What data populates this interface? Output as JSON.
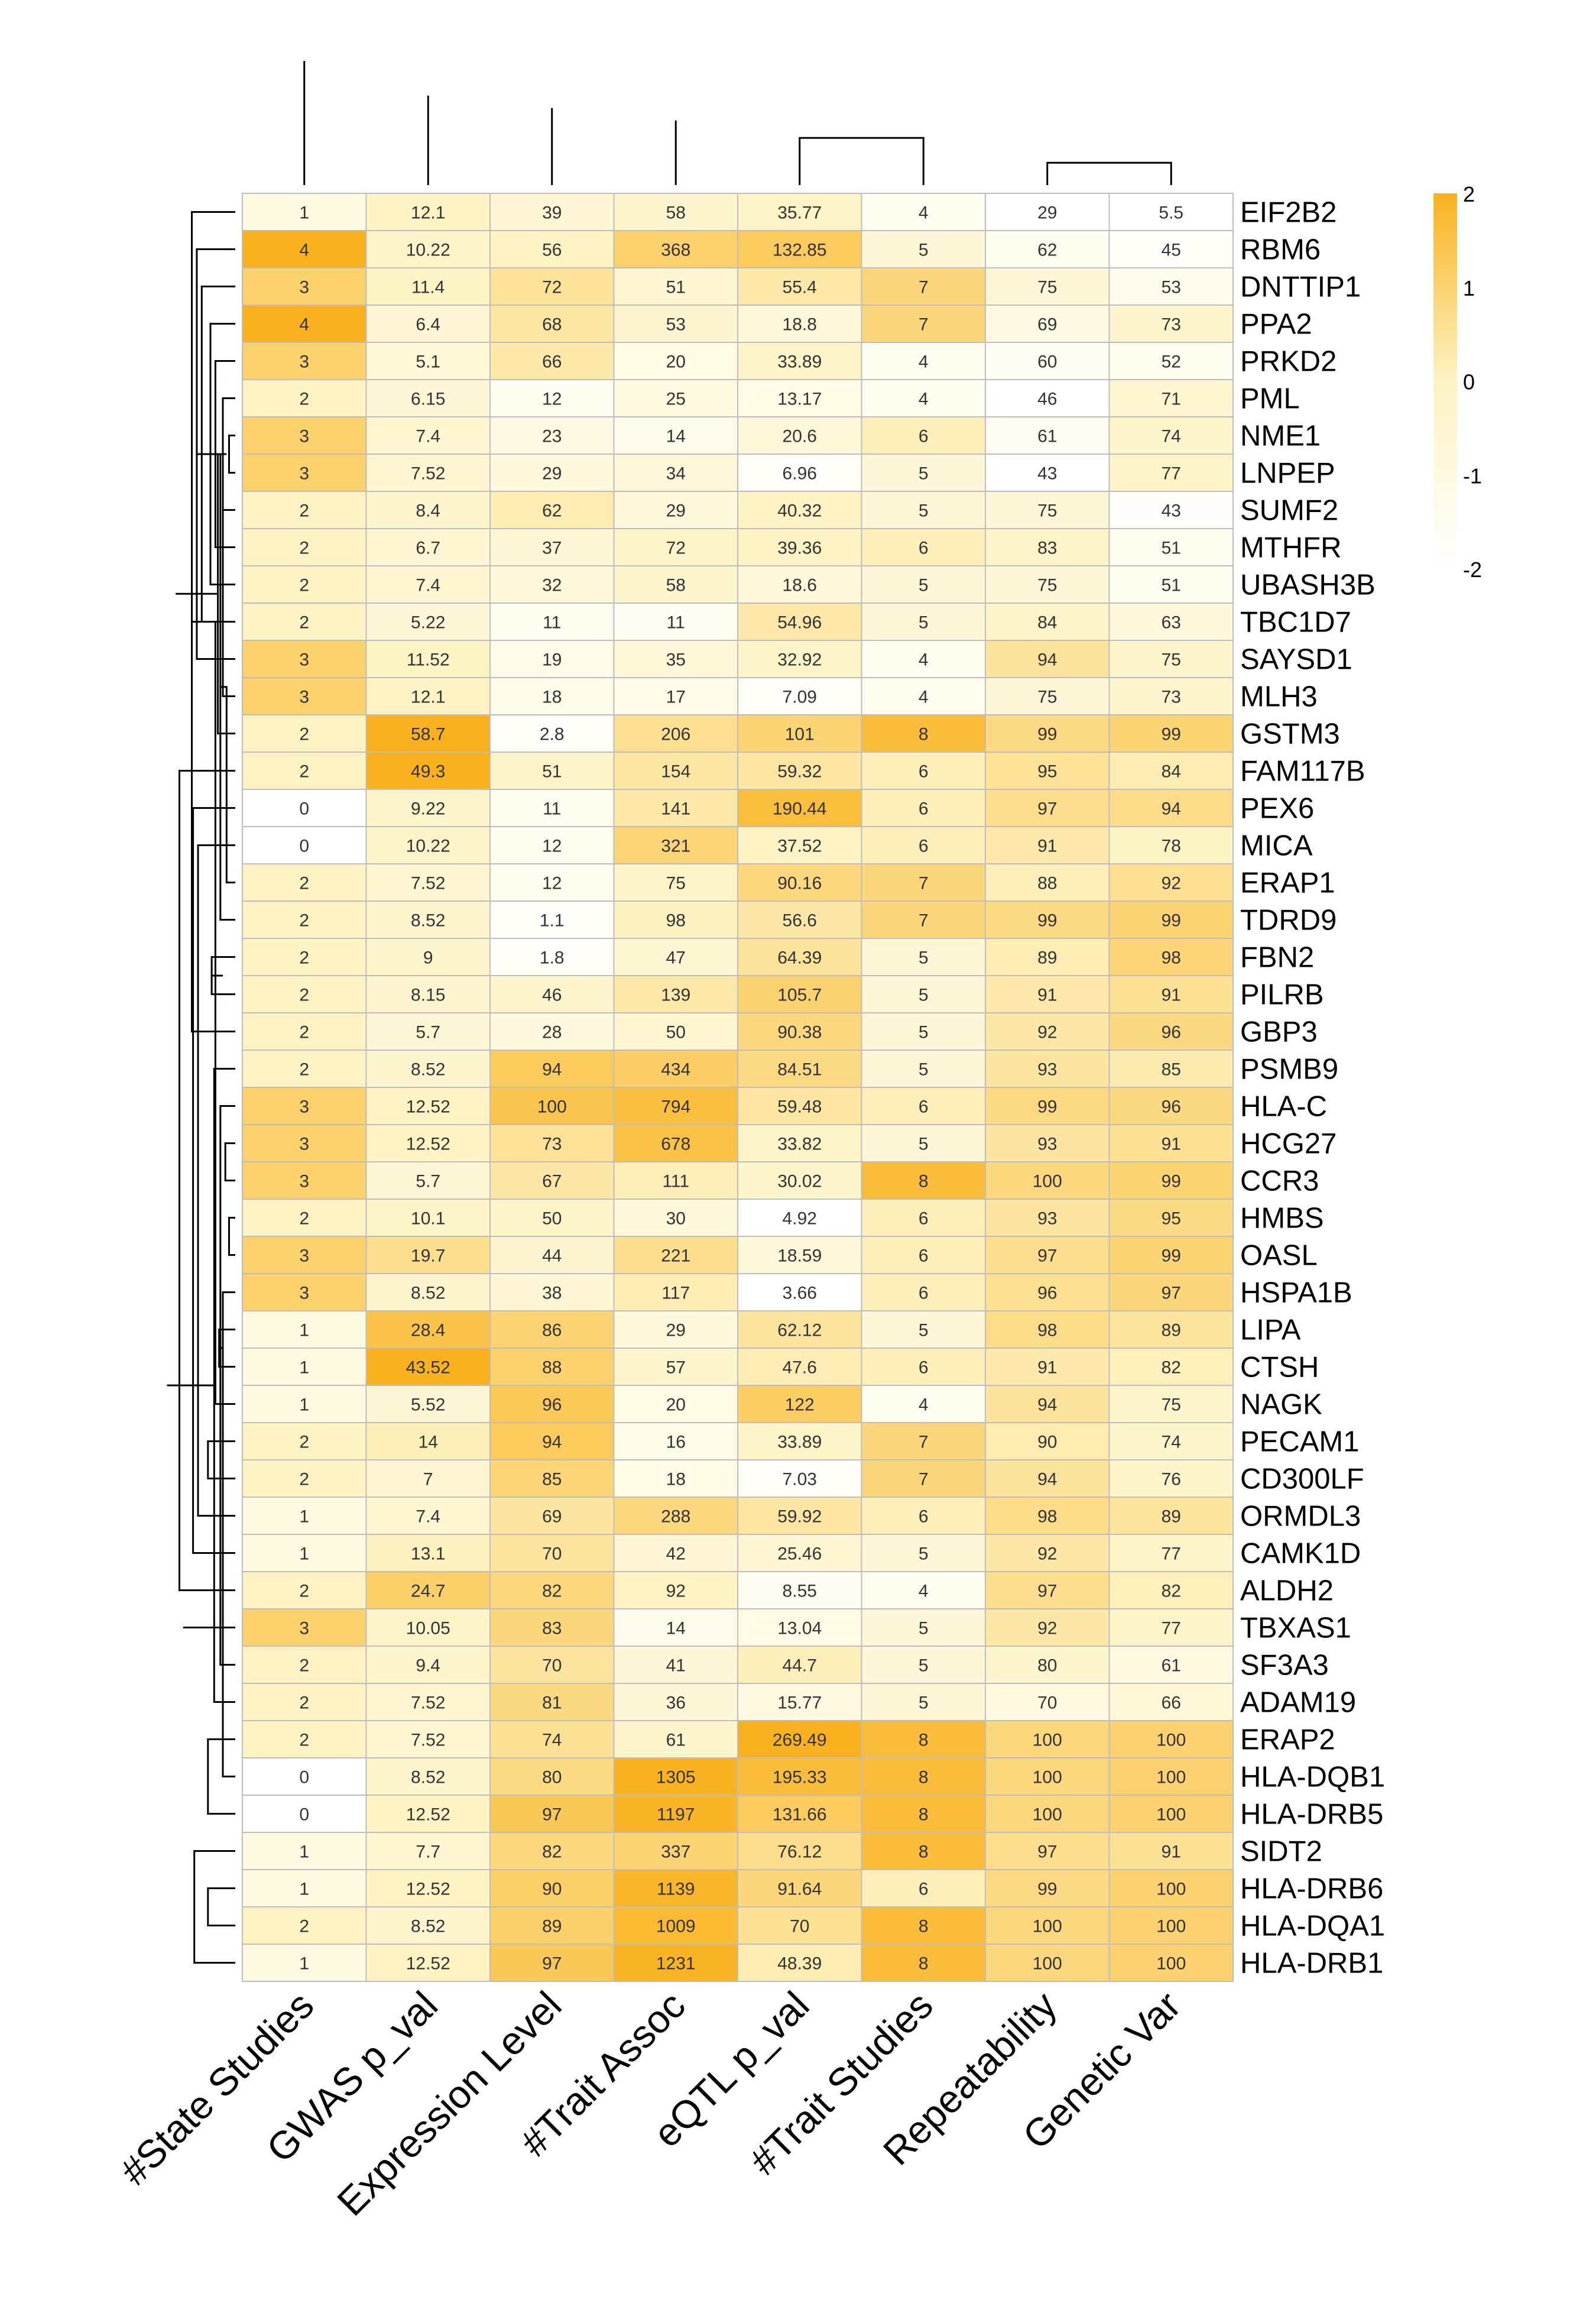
{
  "chart_data": {
    "type": "heatmap",
    "title": "",
    "xlabel": "",
    "ylabel": "",
    "columns": [
      "#State Studies",
      "GWAS p_val",
      "Expression Level",
      "#Trait Assoc",
      "eQTL p_val",
      "#Trait Studies",
      "Repeatability",
      "Genetic Var"
    ],
    "rows": [
      "EIF2B2",
      "RBM6",
      "DNTTIP1",
      "PPA2",
      "PRKD2",
      "PML",
      "NME1",
      "LNPEP",
      "SUMF2",
      "MTHFR",
      "UBASH3B",
      "TBC1D7",
      "SAYSD1",
      "MLH3",
      "GSTM3",
      "FAM117B",
      "PEX6",
      "MICA",
      "ERAP1",
      "TDRD9",
      "FBN2",
      "PILRB",
      "GBP3",
      "PSMB9",
      "HLA-C",
      "HCG27",
      "CCR3",
      "HMBS",
      "OASL",
      "HSPA1B",
      "LIPA",
      "CTSH",
      "NAGK",
      "PECAM1",
      "CD300LF",
      "ORMDL3",
      "CAMK1D",
      "ALDH2",
      "TBXAS1",
      "SF3A3",
      "ADAM19",
      "ERAP2",
      "HLA-DQB1",
      "HLA-DRB5",
      "SIDT2",
      "HLA-DRB6",
      "HLA-DQA1",
      "HLA-DRB1"
    ],
    "values": [
      [
        "1",
        "12.1",
        "39",
        "58",
        "35.77",
        "4",
        "29",
        "5.5"
      ],
      [
        "4",
        "10.22",
        "56",
        "368",
        "132.85",
        "5",
        "62",
        "45"
      ],
      [
        "3",
        "11.4",
        "72",
        "51",
        "55.4",
        "7",
        "75",
        "53"
      ],
      [
        "4",
        "6.4",
        "68",
        "53",
        "18.8",
        "7",
        "69",
        "73"
      ],
      [
        "3",
        "5.1",
        "66",
        "20",
        "33.89",
        "4",
        "60",
        "52"
      ],
      [
        "2",
        "6.15",
        "12",
        "25",
        "13.17",
        "4",
        "46",
        "71"
      ],
      [
        "3",
        "7.4",
        "23",
        "14",
        "20.6",
        "6",
        "61",
        "74"
      ],
      [
        "3",
        "7.52",
        "29",
        "34",
        "6.96",
        "5",
        "43",
        "77"
      ],
      [
        "2",
        "8.4",
        "62",
        "29",
        "40.32",
        "5",
        "75",
        "43"
      ],
      [
        "2",
        "6.7",
        "37",
        "72",
        "39.36",
        "6",
        "83",
        "51"
      ],
      [
        "2",
        "7.4",
        "32",
        "58",
        "18.6",
        "5",
        "75",
        "51"
      ],
      [
        "2",
        "5.22",
        "11",
        "11",
        "54.96",
        "5",
        "84",
        "63"
      ],
      [
        "3",
        "11.52",
        "19",
        "35",
        "32.92",
        "4",
        "94",
        "75"
      ],
      [
        "3",
        "12.1",
        "18",
        "17",
        "7.09",
        "4",
        "75",
        "73"
      ],
      [
        "2",
        "58.7",
        "2.8",
        "206",
        "101",
        "8",
        "99",
        "99"
      ],
      [
        "2",
        "49.3",
        "51",
        "154",
        "59.32",
        "6",
        "95",
        "84"
      ],
      [
        "0",
        "9.22",
        "11",
        "141",
        "190.44",
        "6",
        "97",
        "94"
      ],
      [
        "0",
        "10.22",
        "12",
        "321",
        "37.52",
        "6",
        "91",
        "78"
      ],
      [
        "2",
        "7.52",
        "12",
        "75",
        "90.16",
        "7",
        "88",
        "92"
      ],
      [
        "2",
        "8.52",
        "1.1",
        "98",
        "56.6",
        "7",
        "99",
        "99"
      ],
      [
        "2",
        "9",
        "1.8",
        "47",
        "64.39",
        "5",
        "89",
        "98"
      ],
      [
        "2",
        "8.15",
        "46",
        "139",
        "105.7",
        "5",
        "91",
        "91"
      ],
      [
        "2",
        "5.7",
        "28",
        "50",
        "90.38",
        "5",
        "92",
        "96"
      ],
      [
        "2",
        "8.52",
        "94",
        "434",
        "84.51",
        "5",
        "93",
        "85"
      ],
      [
        "3",
        "12.52",
        "100",
        "794",
        "59.48",
        "6",
        "99",
        "96"
      ],
      [
        "3",
        "12.52",
        "73",
        "678",
        "33.82",
        "5",
        "93",
        "91"
      ],
      [
        "3",
        "5.7",
        "67",
        "111",
        "30.02",
        "8",
        "100",
        "99"
      ],
      [
        "2",
        "10.1",
        "50",
        "30",
        "4.92",
        "6",
        "93",
        "95"
      ],
      [
        "3",
        "19.7",
        "44",
        "221",
        "18.59",
        "6",
        "97",
        "99"
      ],
      [
        "3",
        "8.52",
        "38",
        "117",
        "3.66",
        "6",
        "96",
        "97"
      ],
      [
        "1",
        "28.4",
        "86",
        "29",
        "62.12",
        "5",
        "98",
        "89"
      ],
      [
        "1",
        "43.52",
        "88",
        "57",
        "47.6",
        "6",
        "91",
        "82"
      ],
      [
        "1",
        "5.52",
        "96",
        "20",
        "122",
        "4",
        "94",
        "75"
      ],
      [
        "2",
        "14",
        "94",
        "16",
        "33.89",
        "7",
        "90",
        "74"
      ],
      [
        "2",
        "7",
        "85",
        "18",
        "7.03",
        "7",
        "94",
        "76"
      ],
      [
        "1",
        "7.4",
        "69",
        "288",
        "59.92",
        "6",
        "98",
        "89"
      ],
      [
        "1",
        "13.1",
        "70",
        "42",
        "25.46",
        "5",
        "92",
        "77"
      ],
      [
        "2",
        "24.7",
        "82",
        "92",
        "8.55",
        "4",
        "97",
        "82"
      ],
      [
        "3",
        "10.05",
        "83",
        "14",
        "13.04",
        "5",
        "92",
        "77"
      ],
      [
        "2",
        "9.4",
        "70",
        "41",
        "44.7",
        "5",
        "80",
        "61"
      ],
      [
        "2",
        "7.52",
        "81",
        "36",
        "15.77",
        "5",
        "70",
        "66"
      ],
      [
        "2",
        "7.52",
        "74",
        "61",
        "269.49",
        "8",
        "100",
        "100"
      ],
      [
        "0",
        "8.52",
        "80",
        "1305",
        "195.33",
        "8",
        "100",
        "100"
      ],
      [
        "0",
        "12.52",
        "97",
        "1197",
        "131.66",
        "8",
        "100",
        "100"
      ],
      [
        "1",
        "7.7",
        "82",
        "337",
        "76.12",
        "8",
        "97",
        "91"
      ],
      [
        "1",
        "12.52",
        "90",
        "1139",
        "91.64",
        "6",
        "99",
        "100"
      ],
      [
        "2",
        "8.52",
        "89",
        "1009",
        "70",
        "8",
        "100",
        "100"
      ],
      [
        "1",
        "12.52",
        "97",
        "1231",
        "48.39",
        "8",
        "100",
        "100"
      ]
    ],
    "color_scale": {
      "low": "#ffffff",
      "mid": "#fdf3c3",
      "high": "#f9b21e",
      "range": [
        -2,
        2
      ],
      "ticks": [
        "2",
        "1",
        "0",
        "-1",
        "-2"
      ]
    },
    "column_dendrogram": {
      "merges": [
        [
          6,
          7,
          0.18
        ],
        [
          4,
          5,
          0.38
        ],
        [
          3,
          8,
          0.52
        ],
        [
          2,
          9,
          0.62
        ],
        [
          1,
          10,
          0.72
        ],
        [
          0,
          11,
          1.0
        ]
      ]
    },
    "row_dendrogram": {
      "merges": [
        [
          6,
          7,
          0.05
        ],
        [
          5,
          8,
          0.1
        ],
        [
          4,
          9,
          0.16
        ],
        [
          3,
          10,
          0.2
        ],
        [
          2,
          11,
          0.27
        ],
        [
          1,
          12,
          0.31
        ],
        [
          12,
          13,
          0.1
        ],
        [
          11,
          14,
          0.14
        ],
        [
          9,
          10,
          0.07
        ],
        [
          8,
          19,
          0.12
        ],
        [
          20,
          21,
          0.19
        ],
        [
          0,
          22,
          0.35
        ],
        [
          18,
          19,
          0.07
        ],
        [
          20,
          21,
          0.1
        ],
        [
          30,
          31,
          0.13
        ],
        [
          22,
          32,
          0.16
        ],
        [
          33,
          34,
          0.22
        ],
        [
          17,
          35,
          0.3
        ],
        [
          16,
          36,
          0.34
        ],
        [
          15,
          37,
          0.45
        ],
        [
          25,
          26,
          0.08
        ],
        [
          24,
          39,
          0.12
        ],
        [
          23,
          40,
          0.17
        ],
        [
          27,
          28,
          0.05
        ],
        [
          29,
          42,
          0.1
        ],
        [
          41,
          43,
          0.22
        ],
        [
          30,
          31,
          0.1
        ],
        [
          45,
          46,
          0.22
        ],
        [
          44,
          47,
          0.33
        ],
        [
          38,
          48,
          0.42
        ],
        [
          14,
          49,
          0.48
        ],
        [
          23,
          50,
          0.55
        ]
      ]
    }
  }
}
